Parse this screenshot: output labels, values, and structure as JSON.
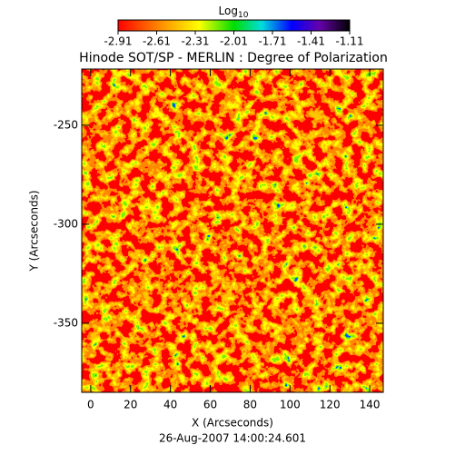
{
  "chart_data": {
    "type": "heatmap",
    "title": "Hinode SOT/SP - MERLIN : Degree of Polarization",
    "colorbar_label": "Log",
    "colorbar_label_subscript": "10",
    "colorbar_lim": [
      -2.91,
      -1.11
    ],
    "colorbar_ticks": [
      -2.91,
      -2.61,
      -2.31,
      -2.01,
      -1.71,
      -1.41,
      -1.11
    ],
    "x_label": "X (Arcseconds)",
    "y_label": "Y (Arcseconds)",
    "footer": "26-Aug-2007 14:00:24.601",
    "xlim": [
      -4.5,
      146.8
    ],
    "xticks": [
      0,
      20,
      40,
      60,
      80,
      100,
      120,
      140
    ],
    "ylim": [
      -384.9,
      -221.6
    ],
    "yticks": [
      -350,
      -300,
      -250
    ]
  }
}
